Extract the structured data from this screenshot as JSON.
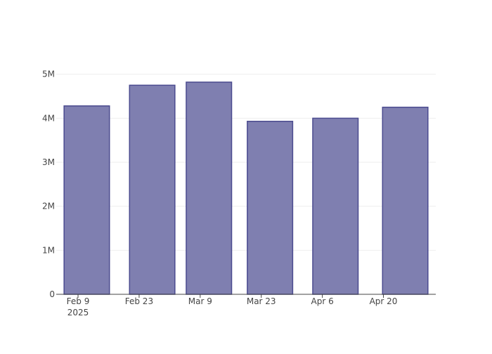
{
  "chart_data": {
    "type": "bar",
    "x": [
      "2025-02-11",
      "2025-02-26",
      "2025-03-11",
      "2025-03-25",
      "2025-04-09",
      "2025-04-25"
    ],
    "values": [
      4280000,
      4750000,
      4820000,
      3930000,
      4000000,
      4250000
    ],
    "color": "#7f7fb0",
    "edge_color": "#4b4b8f",
    "xlim": [
      "2025-02-04",
      "2025-05-02"
    ],
    "xticks": [
      {
        "value": "2025-02-09",
        "label": "Feb 9\n2025"
      },
      {
        "value": "2025-02-23",
        "label": "Feb 23"
      },
      {
        "value": "2025-03-09",
        "label": "Mar 9"
      },
      {
        "value": "2025-03-23",
        "label": "Mar 23"
      },
      {
        "value": "2025-04-06",
        "label": "Apr 6"
      },
      {
        "value": "2025-04-20",
        "label": "Apr 20"
      }
    ],
    "ylim": [
      0,
      5250000
    ],
    "yticks": [
      0,
      {
        "value": 1000000,
        "label": "1M"
      },
      {
        "value": 2000000,
        "label": "2M"
      },
      {
        "value": 3000000,
        "label": "3M"
      },
      {
        "value": 4000000,
        "label": "4M"
      },
      {
        "value": 5000000,
        "label": "5M"
      }
    ],
    "grid": true
  }
}
